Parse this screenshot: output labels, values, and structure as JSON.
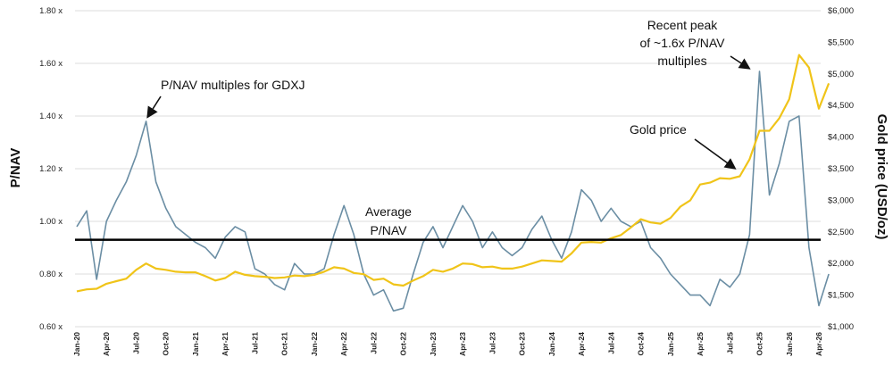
{
  "chart_data": {
    "type": "line",
    "ylabel": "P/NAV",
    "ylabel_right": "Gold price (USD/oz)",
    "y_left_ticks": [
      "1.80 x",
      "1.60 x",
      "1.40 x",
      "1.20 x",
      "1.00 x",
      "0.80 x",
      "0.60 x"
    ],
    "y_left_range": [
      0.6,
      1.8
    ],
    "y_right_ticks": [
      "$6,000",
      "$5,500",
      "$5,000",
      "$4,500",
      "$4,000",
      "$3,500",
      "$3,000",
      "$2,500",
      "$2,000",
      "$1,500",
      "$1,000"
    ],
    "y_right_range": [
      1000,
      6000
    ],
    "x_ticks": [
      "Jan-20",
      "Apr-20",
      "Jul-20",
      "Oct-20",
      "Jan-21",
      "Apr-21",
      "Jul-21",
      "Oct-21",
      "Jan-22",
      "Apr-22",
      "Jul-22",
      "Oct-22",
      "Jan-23",
      "Apr-23",
      "Jul-23",
      "Oct-23",
      "Jan-24",
      "Apr-24",
      "Jul-24",
      "Oct-24",
      "Jan-25",
      "Apr-25",
      "Jul-25",
      "Oct-25",
      "Jan-26",
      "Apr-26"
    ],
    "grid": true,
    "average_pnav": 0.93,
    "series": [
      {
        "axis": "left",
        "color": "#6b8ea4",
        "points": [
          [
            "Jan-20",
            0.98
          ],
          [
            "Feb-20",
            1.04
          ],
          [
            "Mar-20",
            0.78
          ],
          [
            "Apr-20",
            1.0
          ],
          [
            "May-20",
            1.08
          ],
          [
            "Jun-20",
            1.15
          ],
          [
            "Jul-20",
            1.25
          ],
          [
            "Aug-20",
            1.38
          ],
          [
            "Sep-20",
            1.15
          ],
          [
            "Oct-20",
            1.05
          ],
          [
            "Nov-20",
            0.98
          ],
          [
            "Dec-20",
            0.95
          ],
          [
            "Jan-21",
            0.92
          ],
          [
            "Feb-21",
            0.9
          ],
          [
            "Mar-21",
            0.86
          ],
          [
            "Apr-21",
            0.94
          ],
          [
            "May-21",
            0.98
          ],
          [
            "Jun-21",
            0.96
          ],
          [
            "Jul-21",
            0.82
          ],
          [
            "Aug-21",
            0.8
          ],
          [
            "Sep-21",
            0.76
          ],
          [
            "Oct-21",
            0.74
          ],
          [
            "Nov-21",
            0.84
          ],
          [
            "Dec-21",
            0.8
          ],
          [
            "Jan-22",
            0.8
          ],
          [
            "Feb-22",
            0.82
          ],
          [
            "Mar-22",
            0.95
          ],
          [
            "Apr-22",
            1.06
          ],
          [
            "May-22",
            0.95
          ],
          [
            "Jun-22",
            0.8
          ],
          [
            "Jul-22",
            0.72
          ],
          [
            "Aug-22",
            0.74
          ],
          [
            "Sep-22",
            0.66
          ],
          [
            "Oct-22",
            0.67
          ],
          [
            "Nov-22",
            0.8
          ],
          [
            "Dec-22",
            0.92
          ],
          [
            "Jan-23",
            0.98
          ],
          [
            "Feb-23",
            0.9
          ],
          [
            "Mar-23",
            0.98
          ],
          [
            "Apr-23",
            1.06
          ],
          [
            "May-23",
            1.0
          ],
          [
            "Jun-23",
            0.9
          ],
          [
            "Jul-23",
            0.96
          ],
          [
            "Aug-23",
            0.9
          ],
          [
            "Sep-23",
            0.87
          ],
          [
            "Oct-23",
            0.9
          ],
          [
            "Nov-23",
            0.97
          ],
          [
            "Dec-23",
            1.02
          ],
          [
            "Jan-24",
            0.93
          ],
          [
            "Feb-24",
            0.86
          ],
          [
            "Mar-24",
            0.96
          ],
          [
            "Apr-24",
            1.12
          ],
          [
            "May-24",
            1.08
          ],
          [
            "Jun-24",
            1.0
          ],
          [
            "Jul-24",
            1.05
          ],
          [
            "Aug-24",
            1.0
          ],
          [
            "Sep-24",
            0.98
          ],
          [
            "Oct-24",
            1.0
          ],
          [
            "Nov-24",
            0.9
          ],
          [
            "Dec-24",
            0.86
          ],
          [
            "Jan-25",
            0.8
          ],
          [
            "Feb-25",
            0.76
          ],
          [
            "Mar-25",
            0.72
          ],
          [
            "Apr-25",
            0.72
          ],
          [
            "May-25",
            0.68
          ],
          [
            "Jun-25",
            0.78
          ],
          [
            "Jul-25",
            0.75
          ],
          [
            "Aug-25",
            0.8
          ],
          [
            "Sep-25",
            0.95
          ],
          [
            "Oct-25",
            1.57
          ],
          [
            "Nov-25",
            1.1
          ],
          [
            "Dec-25",
            1.22
          ],
          [
            "Jan-26",
            1.38
          ],
          [
            "Feb-26",
            1.4
          ],
          [
            "Mar-26",
            0.9
          ],
          [
            "Apr-26",
            0.68
          ],
          [
            "May-26",
            0.8
          ]
        ]
      },
      {
        "axis": "right",
        "color": "#f0c419",
        "points": [
          [
            "Jan-20",
            1560
          ],
          [
            "Feb-20",
            1590
          ],
          [
            "Mar-20",
            1600
          ],
          [
            "Apr-20",
            1680
          ],
          [
            "May-20",
            1720
          ],
          [
            "Jun-20",
            1760
          ],
          [
            "Jul-20",
            1900
          ],
          [
            "Aug-20",
            2000
          ],
          [
            "Sep-20",
            1920
          ],
          [
            "Oct-20",
            1900
          ],
          [
            "Nov-20",
            1870
          ],
          [
            "Dec-20",
            1860
          ],
          [
            "Jan-21",
            1860
          ],
          [
            "Feb-21",
            1800
          ],
          [
            "Mar-21",
            1730
          ],
          [
            "Apr-21",
            1770
          ],
          [
            "May-21",
            1870
          ],
          [
            "Jun-21",
            1820
          ],
          [
            "Jul-21",
            1800
          ],
          [
            "Aug-21",
            1790
          ],
          [
            "Sep-21",
            1770
          ],
          [
            "Oct-21",
            1780
          ],
          [
            "Nov-21",
            1810
          ],
          [
            "Dec-21",
            1800
          ],
          [
            "Jan-22",
            1820
          ],
          [
            "Feb-22",
            1870
          ],
          [
            "Mar-22",
            1940
          ],
          [
            "Apr-22",
            1920
          ],
          [
            "May-22",
            1850
          ],
          [
            "Jun-22",
            1830
          ],
          [
            "Jul-22",
            1740
          ],
          [
            "Aug-22",
            1760
          ],
          [
            "Sep-22",
            1670
          ],
          [
            "Oct-22",
            1650
          ],
          [
            "Nov-22",
            1730
          ],
          [
            "Dec-22",
            1800
          ],
          [
            "Jan-23",
            1900
          ],
          [
            "Feb-23",
            1870
          ],
          [
            "Mar-23",
            1920
          ],
          [
            "Apr-23",
            2000
          ],
          [
            "May-23",
            1990
          ],
          [
            "Jun-23",
            1940
          ],
          [
            "Jul-23",
            1950
          ],
          [
            "Aug-23",
            1920
          ],
          [
            "Sep-23",
            1920
          ],
          [
            "Oct-23",
            1950
          ],
          [
            "Nov-23",
            2000
          ],
          [
            "Dec-23",
            2050
          ],
          [
            "Jan-24",
            2040
          ],
          [
            "Feb-24",
            2030
          ],
          [
            "Mar-24",
            2160
          ],
          [
            "Apr-24",
            2330
          ],
          [
            "May-24",
            2340
          ],
          [
            "Jun-24",
            2330
          ],
          [
            "Jul-24",
            2400
          ],
          [
            "Aug-24",
            2450
          ],
          [
            "Sep-24",
            2570
          ],
          [
            "Oct-24",
            2700
          ],
          [
            "Nov-24",
            2650
          ],
          [
            "Dec-24",
            2630
          ],
          [
            "Jan-25",
            2720
          ],
          [
            "Feb-25",
            2900
          ],
          [
            "Mar-25",
            3000
          ],
          [
            "Apr-25",
            3250
          ],
          [
            "May-25",
            3280
          ],
          [
            "Jun-25",
            3350
          ],
          [
            "Jul-25",
            3340
          ],
          [
            "Aug-25",
            3380
          ],
          [
            "Sep-25",
            3650
          ],
          [
            "Oct-25",
            4100
          ],
          [
            "Nov-25",
            4100
          ],
          [
            "Dec-25",
            4300
          ],
          [
            "Jan-26",
            4600
          ],
          [
            "Feb-26",
            5300
          ],
          [
            "Mar-26",
            5100
          ],
          [
            "Apr-26",
            4450
          ],
          [
            "May-26",
            4850
          ]
        ]
      }
    ],
    "annotations": [
      {
        "lines": [
          "P/NAV multiples for GDXJ"
        ]
      },
      {
        "lines": [
          "Recent peak",
          "of ~1.6x P/NAV",
          "multiples"
        ]
      },
      {
        "lines": [
          "Gold price"
        ]
      },
      {
        "lines": [
          "Average",
          "P/NAV"
        ]
      }
    ]
  }
}
